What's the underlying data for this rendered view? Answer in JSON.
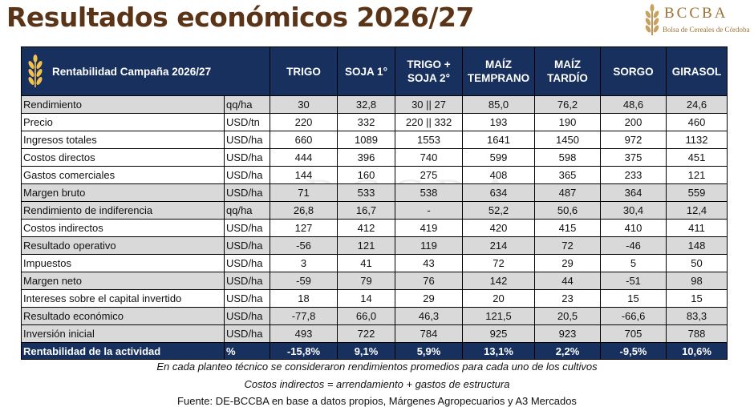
{
  "title": "Resultados económicos 2026/27",
  "logo": {
    "name": "BCCBA",
    "subtitle": "Bolsa de Cereales de Córdoba"
  },
  "table": {
    "header_title": "Rentabilidad Campaña 2026/27",
    "columns": [
      "TRIGO",
      "SOJA 1°",
      "TRIGO + SOJA 2°",
      "MAÍZ TEMPRANO",
      "MAÍZ TARDÍO",
      "SORGO",
      "GIRASOL"
    ],
    "rows": [
      {
        "label": "Rendimiento",
        "unit": "qq/ha",
        "values": [
          "30",
          "32,8",
          "30 || 27",
          "85,0",
          "76,2",
          "48,6",
          "24,6"
        ],
        "style": "gray"
      },
      {
        "label": "Precio",
        "unit": "USD/tn",
        "values": [
          "220",
          "332",
          "220 || 332",
          "193",
          "190",
          "200",
          "460"
        ],
        "style": "white"
      },
      {
        "label": "Ingresos totales",
        "unit": "USD/ha",
        "values": [
          "660",
          "1089",
          "1553",
          "1641",
          "1450",
          "972",
          "1132"
        ],
        "style": "white"
      },
      {
        "label": "Costos directos",
        "unit": "USD/ha",
        "values": [
          "444",
          "396",
          "740",
          "599",
          "598",
          "375",
          "451"
        ],
        "style": "white"
      },
      {
        "label": "Gastos comerciales",
        "unit": "USD/ha",
        "values": [
          "144",
          "160",
          "275",
          "408",
          "365",
          "233",
          "121"
        ],
        "style": "white"
      },
      {
        "label": "Margen bruto",
        "unit": "USD/ha",
        "values": [
          "71",
          "533",
          "538",
          "634",
          "487",
          "364",
          "559"
        ],
        "style": "gray"
      },
      {
        "label": "Rendimiento de indiferencia",
        "unit": "qq/ha",
        "values": [
          "26,8",
          "16,7",
          "-",
          "52,2",
          "50,6",
          "30,4",
          "12,4"
        ],
        "style": "gray"
      },
      {
        "label": "Costos indirectos",
        "unit": "USD/ha",
        "values": [
          "127",
          "412",
          "419",
          "420",
          "415",
          "410",
          "411"
        ],
        "style": "white"
      },
      {
        "label": "Resultado operativo",
        "unit": "USD/ha",
        "values": [
          "-56",
          "121",
          "119",
          "214",
          "72",
          "-46",
          "148"
        ],
        "style": "gray"
      },
      {
        "label": "Impuestos",
        "unit": "USD/ha",
        "values": [
          "3",
          "41",
          "43",
          "72",
          "29",
          "5",
          "50"
        ],
        "style": "white"
      },
      {
        "label": "Margen neto",
        "unit": "USD/ha",
        "values": [
          "-59",
          "79",
          "76",
          "142",
          "44",
          "-51",
          "98"
        ],
        "style": "gray"
      },
      {
        "label": "Intereses sobre el capital invertido",
        "unit": "USD/ha",
        "values": [
          "18",
          "14",
          "29",
          "20",
          "23",
          "15",
          "15"
        ],
        "style": "white"
      },
      {
        "label": "Resultado económico",
        "unit": "USD/ha",
        "values": [
          "-77,8",
          "66,0",
          "46,3",
          "121,5",
          "20,5",
          "-66,6",
          "83,3"
        ],
        "style": "gray"
      },
      {
        "label": "Inversión inicial",
        "unit": "USD/ha",
        "values": [
          "493",
          "722",
          "784",
          "925",
          "923",
          "705",
          "788"
        ],
        "style": "gray"
      },
      {
        "label": "Rentabilidad de la actividad",
        "unit": "%",
        "values": [
          "-15,8%",
          "9,1%",
          "5,9%",
          "13,1%",
          "2,2%",
          "-9,5%",
          "10,6%"
        ],
        "style": "total"
      }
    ]
  },
  "notes": [
    "En cada planteo técnico se consideraron rendimientos promedios para cada uno de los cultivos",
    "Costos indirectos = arrendamiento + gastos de estructura"
  ],
  "source": "Fuente: DE-BCCBA en base a datos propios, Márgenes Agropecuarios y A3 Mercados",
  "colors": {
    "title": "#5b3417",
    "header_bg": "#17305e",
    "gray_row": "#d9d9d9",
    "logo_gold": "#9a7434",
    "wheat_icon": "#f2c14e"
  },
  "icons": [
    "wheat-icon"
  ]
}
